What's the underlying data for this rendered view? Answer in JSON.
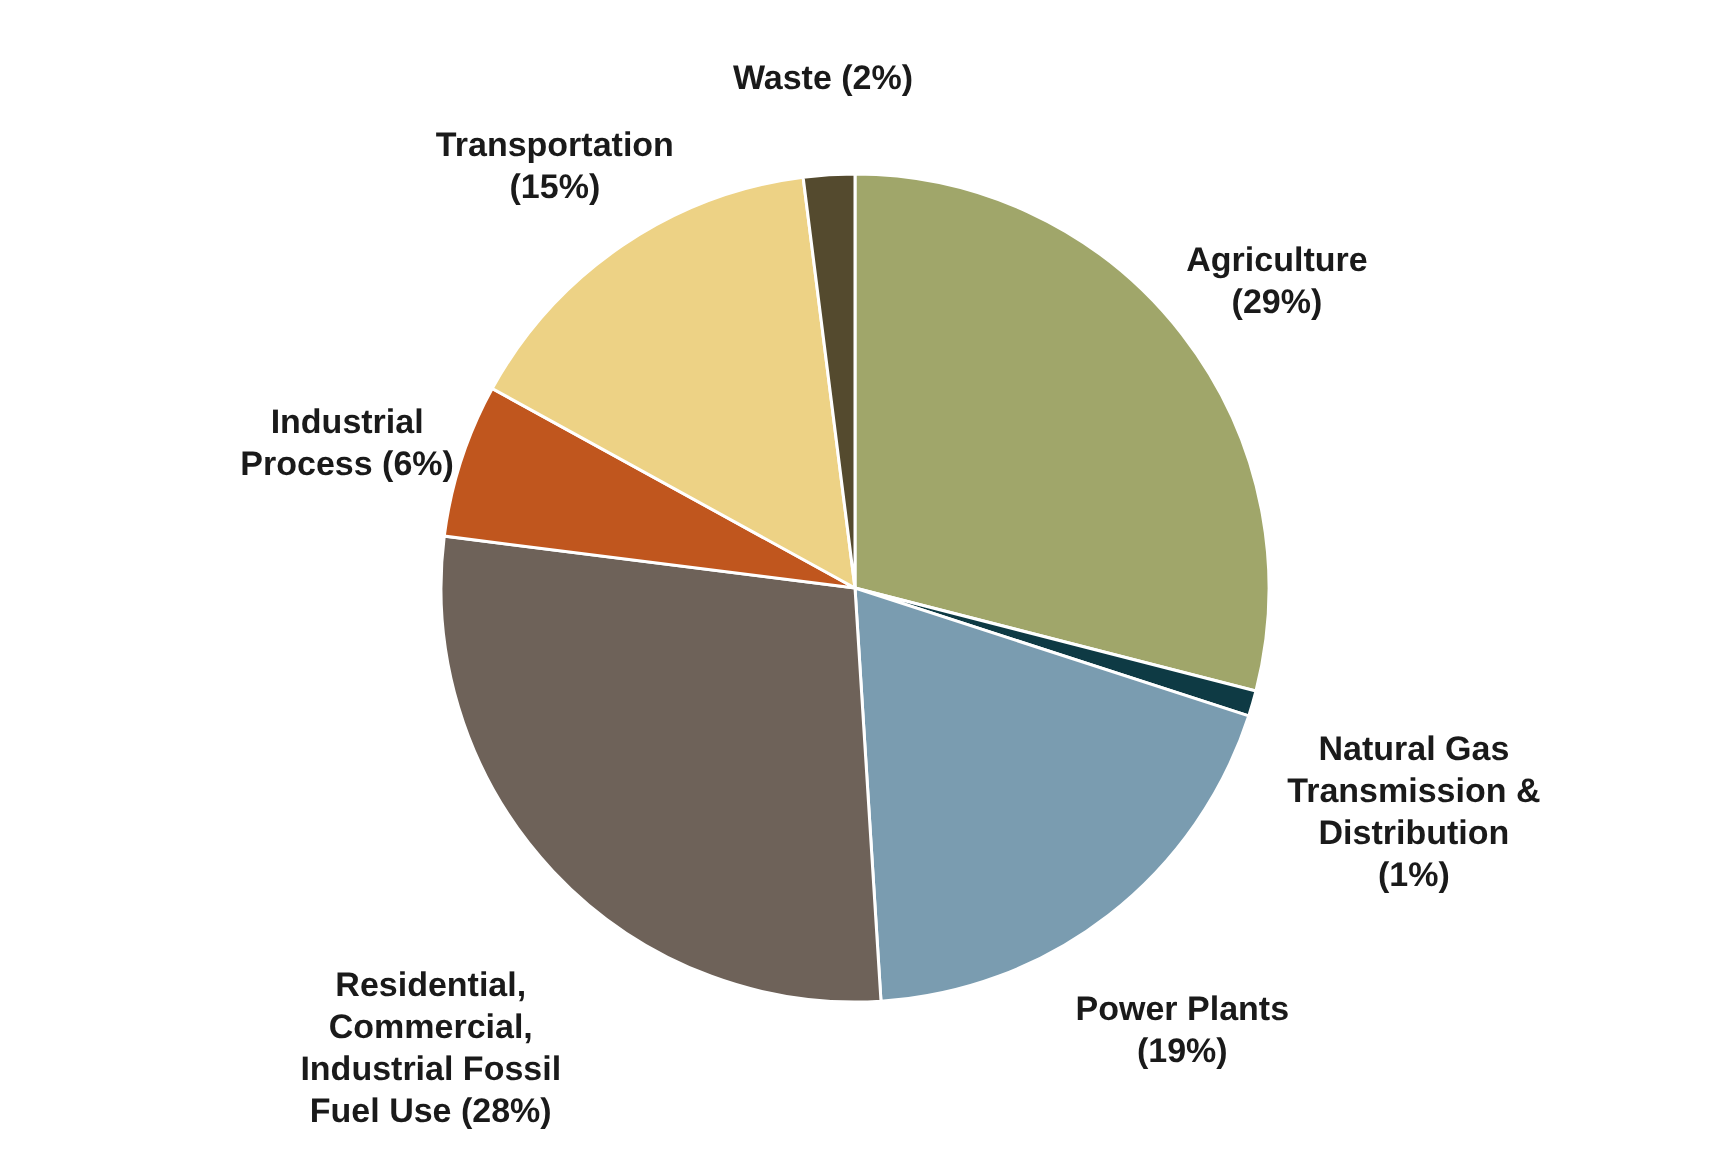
{
  "chart_data": {
    "type": "pie",
    "categories": [
      "Agriculture",
      "Natural Gas Transmission & Distribution",
      "Power Plants",
      "Residential, Commercial, Industrial Fossil Fuel Use",
      "Industrial Process",
      "Transportation",
      "Waste"
    ],
    "values": [
      29,
      1,
      19,
      28,
      6,
      15,
      2
    ],
    "value_labels": [
      "(29%)",
      "(1%)",
      "(19%)",
      "(28%)",
      "(6%)",
      "(15%)",
      "(2%)"
    ],
    "colors": [
      "#a0a66a",
      "#0e3a44",
      "#7a9cb0",
      "#6e6259",
      "#c0561e",
      "#edd285",
      "#544a2e"
    ],
    "legend": false
  }
}
